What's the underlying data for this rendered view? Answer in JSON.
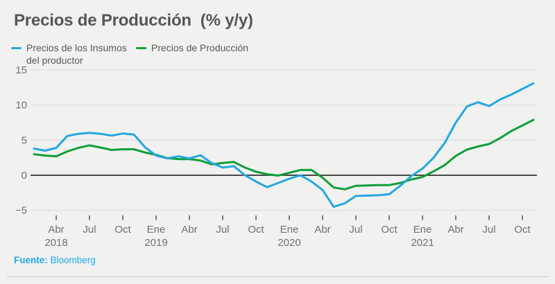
{
  "title": "Precios de Producción  (% y/y)",
  "legend": {
    "items": [
      {
        "lines": [
          "Precios de los Insumos",
          "del productor"
        ],
        "color": "#22a7e0"
      },
      {
        "lines": [
          "Precios de Producción",
          ""
        ],
        "color": "#0f9e38"
      }
    ]
  },
  "source": {
    "label": "Fuente:",
    "value_label": "Bloomberg"
  },
  "chart_data": {
    "type": "line",
    "title": "Precios de Producción (% y/y)",
    "x": [
      "Feb 2018",
      "Mar 2018",
      "Abr 2018",
      "May 2018",
      "Jun 2018",
      "Jul 2018",
      "Ago 2018",
      "Sep 2018",
      "Oct 2018",
      "Nov 2018",
      "Dic 2018",
      "Ene 2019",
      "Feb 2019",
      "Mar 2019",
      "Abr 2019",
      "May 2019",
      "Jun 2019",
      "Jul 2019",
      "Ago 2019",
      "Sep 2019",
      "Oct 2019",
      "Nov 2019",
      "Dic 2019",
      "Ene 2020",
      "Feb 2020",
      "Mar 2020",
      "Abr 2020",
      "May 2020",
      "Jun 2020",
      "Jul 2020",
      "Ago 2020",
      "Sep 2020",
      "Oct 2020",
      "Nov 2020",
      "Dic 2020",
      "Ene 2021",
      "Feb 2021",
      "Mar 2021",
      "Abr 2021",
      "May 2021",
      "Jun 2021",
      "Jul 2021",
      "Ago 2021",
      "Sep 2021",
      "Oct 2021",
      "Nov 2021"
    ],
    "series": [
      {
        "name": "Precios de los Insumos del productor",
        "color": "#22a7e0",
        "values": [
          3.8,
          3.5,
          3.9,
          5.6,
          5.9,
          6.05,
          5.9,
          5.65,
          5.95,
          5.8,
          4.0,
          2.8,
          2.4,
          2.7,
          2.4,
          2.85,
          1.75,
          1.1,
          1.3,
          0.0,
          -0.9,
          -1.7,
          -1.1,
          -0.5,
          0.0,
          -0.9,
          -2.1,
          -4.5,
          -4.0,
          -2.95,
          -2.9,
          -2.85,
          -2.7,
          -1.5,
          -0.1,
          0.95,
          2.5,
          4.6,
          7.5,
          9.8,
          10.4,
          9.85,
          10.8,
          11.5,
          12.3,
          13.1
        ]
      },
      {
        "name": "Precios de Producción",
        "color": "#0f9e38",
        "values": [
          3.0,
          2.8,
          2.7,
          3.4,
          3.9,
          4.25,
          3.95,
          3.6,
          3.7,
          3.7,
          3.25,
          2.9,
          2.45,
          2.3,
          2.3,
          2.1,
          1.55,
          1.75,
          1.9,
          1.1,
          0.5,
          0.15,
          -0.05,
          0.35,
          0.75,
          0.75,
          -0.35,
          -1.75,
          -2.0,
          -1.5,
          -1.45,
          -1.4,
          -1.4,
          -1.1,
          -0.6,
          -0.25,
          0.55,
          1.45,
          2.75,
          3.65,
          4.1,
          4.45,
          5.3,
          6.3,
          7.1,
          7.9
        ]
      }
    ],
    "ylim": [
      -5,
      15
    ],
    "yticks": [
      15,
      10,
      5,
      0,
      -5
    ],
    "xticks": [
      {
        "label": "Abr",
        "index": 2,
        "year": "2018"
      },
      {
        "label": "Jul",
        "index": 5
      },
      {
        "label": "Oct",
        "index": 8
      },
      {
        "label": "Ene",
        "index": 11,
        "year": "2019"
      },
      {
        "label": "Abr",
        "index": 14
      },
      {
        "label": "Jul",
        "index": 17
      },
      {
        "label": "Oct",
        "index": 20
      },
      {
        "label": "Ene",
        "index": 23,
        "year": "2020"
      },
      {
        "label": "Abr",
        "index": 26
      },
      {
        "label": "Jul",
        "index": 29
      },
      {
        "label": "Oct",
        "index": 32
      },
      {
        "label": "Ene",
        "index": 35,
        "year": "2021"
      },
      {
        "label": "Abr",
        "index": 38
      },
      {
        "label": "Jul",
        "index": 41
      },
      {
        "label": "Oct",
        "index": 44
      }
    ],
    "grid": "horizontal",
    "zero_line": true,
    "legend_position": "top-left",
    "colors": {
      "grid": "#dddddb",
      "zero_line": "#2f2f2f",
      "axis_text": "#6d7074",
      "tick": "#77797c"
    }
  }
}
